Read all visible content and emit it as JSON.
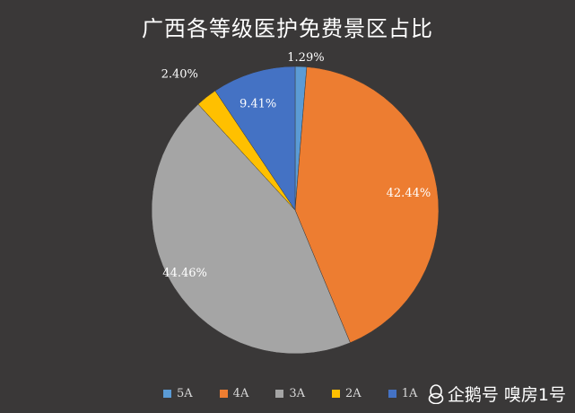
{
  "chart_data": {
    "type": "pie",
    "title": "广西各等级医护免费景区占比",
    "categories": [
      "5A",
      "4A",
      "3A",
      "2A",
      "1A"
    ],
    "values": [
      1.29,
      42.44,
      44.46,
      2.4,
      9.41
    ],
    "value_labels": [
      "1.29%",
      "42.44%",
      "44.46%",
      "2.40%",
      "9.41%"
    ],
    "colors": [
      "#5b9bd5",
      "#ed7d31",
      "#a5a5a5",
      "#ffc000",
      "#4472c4"
    ],
    "start_angle": "12 o'clock, clockwise",
    "legend_placement": "bottom"
  },
  "legend_labels": [
    "5A",
    "4A",
    "3A",
    "2A",
    "1A"
  ],
  "watermark": {
    "text": "企鹅号 嗅房1号"
  }
}
